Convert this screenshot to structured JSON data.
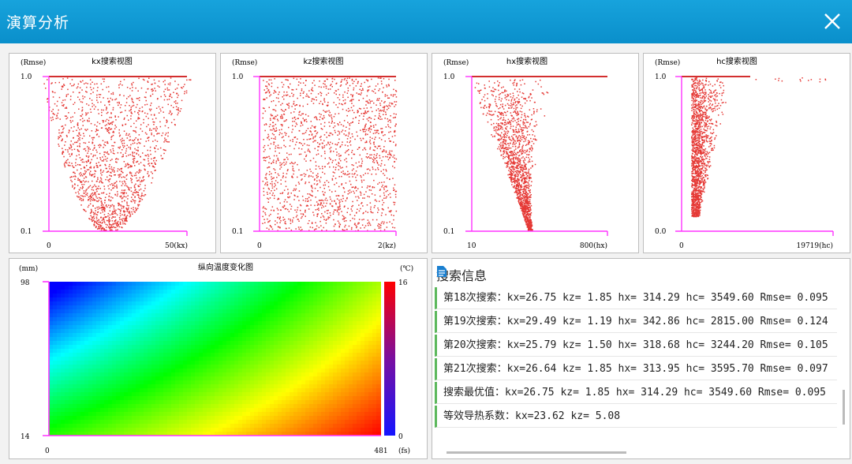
{
  "window": {
    "title": "演算分析",
    "close_icon": "close-icon"
  },
  "scatter_panels": [
    {
      "title": "kx搜索视图",
      "y_unit": "(Rmse)",
      "y_top": "1.0",
      "y_bottom": "0.1",
      "x_left": "0",
      "x_right": "50(kx)"
    },
    {
      "title": "kz搜索视图",
      "y_unit": "(Rmse)",
      "y_top": "1.0",
      "y_bottom": "0.1",
      "x_left": "0",
      "x_right": "2(kz)"
    },
    {
      "title": "hx搜索视图",
      "y_unit": "(Rmse)",
      "y_top": "1.0",
      "y_bottom": "0.1",
      "x_left": "10",
      "x_right": "800(hx)"
    },
    {
      "title": "hc搜索视图",
      "y_unit": "(Rmse)",
      "y_top": "1.0",
      "y_bottom": "0.0",
      "x_left": "0",
      "x_right": "19719(hc)"
    }
  ],
  "heatmap": {
    "title": "纵向温度变化图",
    "y_unit": "(mm)",
    "y_top": "98",
    "y_bottom": "14",
    "x_left": "0",
    "x_right": "481",
    "x_unit": "(fs)",
    "scale_unit": "(℃)",
    "scale_max": "16",
    "scale_min": "0"
  },
  "search_info": {
    "header": "搜索信息",
    "rows": [
      "第18次搜索：kx=26.75 kz= 1.85 hx= 314.29 hc=  3549.60 Rmse= 0.095",
      "第19次搜索：kx=29.49 kz= 1.19 hx= 342.86 hc=  2815.00 Rmse= 0.124",
      "第20次搜索：kx=25.79 kz= 1.50 hx= 318.68 hc=  3244.20 Rmse= 0.105",
      "第21次搜索：kx=26.64 kz= 1.85 hx= 313.95 hc=  3595.70 Rmse= 0.097",
      "搜索最优值：kx=26.75 kz= 1.85 hx= 314.29 hc=  3549.60 Rmse= 0.095",
      "等效导热系数：kx=23.62 kz= 5.08"
    ]
  },
  "colors": {
    "title_bar": "#0a8fcb",
    "axis": "#ff33ff",
    "point": "#e53935",
    "row_marker": "#5cb85c"
  }
}
